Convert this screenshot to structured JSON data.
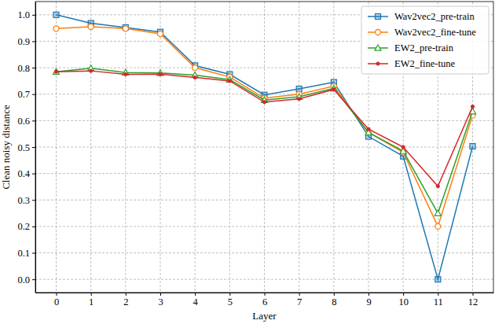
{
  "chart_data": {
    "type": "line",
    "x_label": "Layer",
    "y_label": "Clean noisy distance",
    "x": [
      0,
      1,
      2,
      3,
      4,
      5,
      6,
      7,
      8,
      9,
      10,
      11,
      12
    ],
    "xlim": [
      -0.6,
      12.6
    ],
    "xticks": [
      0,
      1,
      2,
      3,
      4,
      5,
      6,
      7,
      8,
      9,
      10,
      11,
      12
    ],
    "ylim": [
      -0.05,
      1.05
    ],
    "yticks": [
      {
        "value": 0,
        "label": "0.0"
      },
      0.1,
      0.2,
      0.3,
      0.4,
      0.5,
      0.6,
      0.7,
      0.8,
      0.9,
      {
        "value": 1,
        "label": "1.0"
      }
    ],
    "grid": true,
    "legend": "upper right",
    "series": [
      {
        "name": "Wav2vec2_pre-train",
        "color": "#1f77b4",
        "marker": "square",
        "line_style": "solid",
        "values": [
          1.0,
          0.968,
          0.952,
          0.935,
          0.808,
          0.775,
          0.697,
          0.72,
          0.745,
          0.54,
          0.465,
          0.0,
          0.503
        ]
      },
      {
        "name": "Wav2vec2_fine-tune",
        "color": "#ff7f0e",
        "marker": "circle",
        "line_style": "solid",
        "values": [
          0.948,
          0.955,
          0.948,
          0.928,
          0.8,
          0.765,
          0.685,
          0.7,
          0.73,
          0.555,
          0.48,
          0.2,
          0.62
        ]
      },
      {
        "name": "EW2_pre-train",
        "color": "#2ca02c",
        "marker": "triangle",
        "line_style": "solid",
        "values": [
          0.785,
          0.798,
          0.782,
          0.78,
          0.772,
          0.755,
          0.678,
          0.69,
          0.722,
          0.555,
          0.485,
          0.25,
          0.635
        ]
      },
      {
        "name": "EW2_fine-tune",
        "color": "#d62728",
        "marker": "point",
        "line_style": "solid",
        "values": [
          0.785,
          0.788,
          0.775,
          0.776,
          0.763,
          0.75,
          0.67,
          0.682,
          0.718,
          0.568,
          0.5,
          0.352,
          0.653
        ]
      }
    ]
  }
}
